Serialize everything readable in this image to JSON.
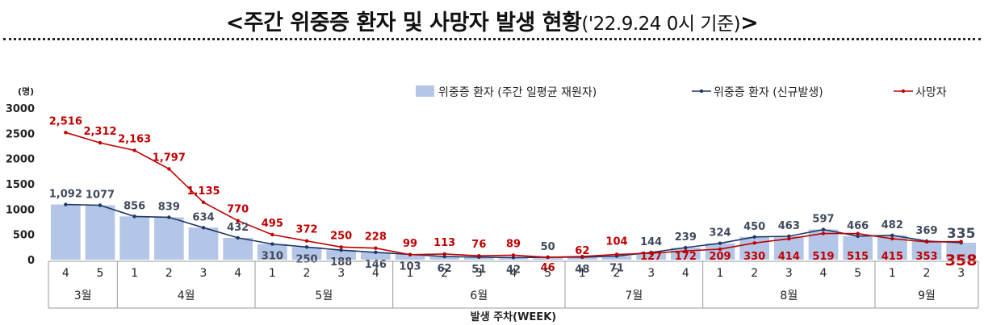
{
  "title": {
    "main": "<주간 위중증 환자 및 사망자 발생 현황",
    "sub": "('22.9.24 0시 기준)",
    "end": ">"
  },
  "colors": {
    "bar": "#b4c6e7",
    "severe_line": "#1f3864",
    "death_line": "#c00000",
    "axis": "#333333",
    "grid_text": "#222222"
  },
  "chart_data": {
    "type": "bar+line",
    "yunit": "(명)",
    "ylim": [
      0,
      3000
    ],
    "yticks": [
      0,
      500,
      1000,
      1500,
      2000,
      2500,
      3000
    ],
    "xlabel": "발생 주차(WEEK)",
    "weeks": [
      "4",
      "5",
      "1",
      "2",
      "3",
      "4",
      "1",
      "2",
      "3",
      "4",
      "1",
      "2",
      "3",
      "4",
      "5",
      "1",
      "2",
      "3",
      "4",
      "1",
      "2",
      "3",
      "4",
      "5",
      "1",
      "2",
      "3"
    ],
    "months": [
      {
        "label": "3월",
        "span": 2
      },
      {
        "label": "4월",
        "span": 4
      },
      {
        "label": "5월",
        "span": 4
      },
      {
        "label": "6월",
        "span": 5
      },
      {
        "label": "7월",
        "span": 4
      },
      {
        "label": "8월",
        "span": 5
      },
      {
        "label": "9월",
        "span": 3
      }
    ],
    "legend": [
      {
        "key": "bar",
        "label": "위중증 환자 (주간 일평균 재원자)"
      },
      {
        "key": "severe_line",
        "label": "위중증 환자 (신규발생)"
      },
      {
        "key": "death_line",
        "label": "사망자"
      }
    ],
    "series": [
      {
        "name": "위중증 환자 (주간 일평균 재원자)",
        "type": "bar",
        "values": [
          1092,
          1077,
          856,
          839,
          634,
          432,
          310,
          250,
          188,
          146,
          103,
          62,
          51,
          42,
          50,
          48,
          71,
          144,
          239,
          324,
          450,
          463,
          597,
          466,
          482,
          369,
          335
        ]
      },
      {
        "name": "위중증 환자 (신규발생)",
        "type": "line",
        "values": [
          1092,
          1077,
          856,
          839,
          634,
          432,
          310,
          250,
          188,
          146,
          103,
          62,
          51,
          42,
          50,
          48,
          71,
          144,
          239,
          324,
          450,
          463,
          597,
          466,
          482,
          369,
          335
        ],
        "labels": [
          "1,092",
          "1077",
          "856",
          "839",
          "634",
          "432",
          "310",
          "250",
          "188",
          "146",
          "103",
          "62",
          "51",
          "42",
          "50",
          "48",
          "71",
          "144",
          "239",
          "324",
          "450",
          "463",
          "597",
          "466",
          "482",
          "369",
          "335"
        ]
      },
      {
        "name": "사망자",
        "type": "line",
        "values": [
          2516,
          2312,
          2163,
          1797,
          1135,
          770,
          495,
          372,
          250,
          228,
          99,
          113,
          76,
          89,
          46,
          62,
          104,
          127,
          172,
          209,
          330,
          414,
          519,
          515,
          415,
          353,
          358
        ],
        "labels": [
          "2,516",
          "2,312",
          "2,163",
          "1,797",
          "1,135",
          "770",
          "495",
          "372",
          "250",
          "228",
          "99",
          "113",
          "76",
          "89",
          "46",
          "62",
          "104",
          "127",
          "172",
          "209",
          "330",
          "414",
          "519",
          "515",
          "415",
          "353",
          "358"
        ]
      }
    ]
  }
}
